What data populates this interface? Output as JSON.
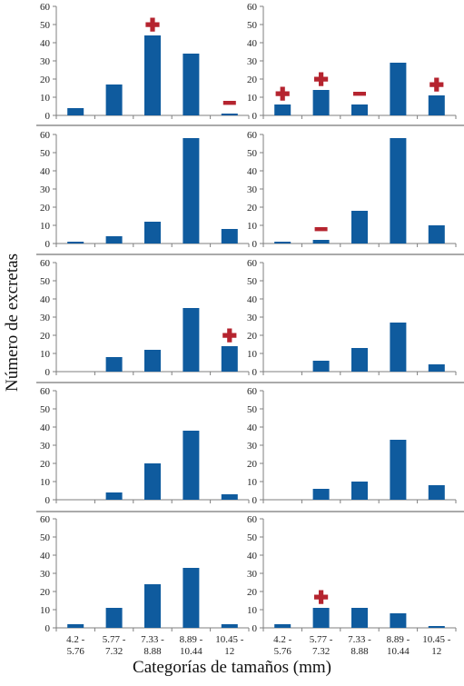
{
  "ylabel": "Número de excretas",
  "xlabel": "Categorías de tamaños (mm)",
  "colors": {
    "bar": "#0f5b9e",
    "marker": "#b5242f",
    "axis": "#7f7f7f",
    "divider": "#555555"
  },
  "chart_data": [
    {
      "type": "bar",
      "panel": "row1-left",
      "categories": [
        "4.2 - 5.76",
        "5.77 - 7.32",
        "7.33 - 8.88",
        "8.89 - 10.44",
        "10.45 - 12"
      ],
      "values": [
        4,
        17,
        44,
        34,
        1
      ],
      "ylim": [
        0,
        60
      ],
      "yticks": [
        0,
        10,
        20,
        30,
        40,
        50,
        60
      ],
      "markers": [
        {
          "category": "7.33 - 8.88",
          "symbol": "plus"
        },
        {
          "category": "10.45 - 12",
          "symbol": "minus"
        }
      ]
    },
    {
      "type": "bar",
      "panel": "row1-right",
      "categories": [
        "4.2 - 5.76",
        "5.77 - 7.32",
        "7.33 - 8.88",
        "8.89 - 10.44",
        "10.45 - 12"
      ],
      "values": [
        6,
        14,
        6,
        29,
        11
      ],
      "ylim": [
        0,
        60
      ],
      "yticks": [
        0,
        10,
        20,
        30,
        40,
        50,
        60
      ],
      "markers": [
        {
          "category": "4.2 - 5.76",
          "symbol": "plus"
        },
        {
          "category": "5.77 - 7.32",
          "symbol": "plus"
        },
        {
          "category": "7.33 - 8.88",
          "symbol": "minus"
        },
        {
          "category": "10.45 - 12",
          "symbol": "plus"
        }
      ]
    },
    {
      "type": "bar",
      "panel": "row2-left",
      "categories": [
        "4.2 - 5.76",
        "5.77 - 7.32",
        "7.33 - 8.88",
        "8.89 - 10.44",
        "10.45 - 12"
      ],
      "values": [
        1,
        4,
        12,
        58,
        8
      ],
      "ylim": [
        0,
        60
      ],
      "yticks": [
        0,
        10,
        20,
        30,
        40,
        50,
        60
      ],
      "markers": []
    },
    {
      "type": "bar",
      "panel": "row2-right",
      "categories": [
        "4.2 - 5.76",
        "5.77 - 7.32",
        "7.33 - 8.88",
        "8.89 - 10.44",
        "10.45 - 12"
      ],
      "values": [
        1,
        2,
        18,
        58,
        10
      ],
      "ylim": [
        0,
        60
      ],
      "yticks": [
        0,
        10,
        20,
        30,
        40,
        50,
        60
      ],
      "markers": [
        {
          "category": "5.77 - 7.32",
          "symbol": "minus"
        }
      ]
    },
    {
      "type": "bar",
      "panel": "row3-left",
      "categories": [
        "4.2 - 5.76",
        "5.77 - 7.32",
        "7.33 - 8.88",
        "8.89 - 10.44",
        "10.45 - 12"
      ],
      "values": [
        0,
        8,
        12,
        35,
        14
      ],
      "ylim": [
        0,
        60
      ],
      "yticks": [
        0,
        10,
        20,
        30,
        40,
        50,
        60
      ],
      "markers": [
        {
          "category": "10.45 - 12",
          "symbol": "plus"
        }
      ]
    },
    {
      "type": "bar",
      "panel": "row3-right",
      "categories": [
        "4.2 - 5.76",
        "5.77 - 7.32",
        "7.33 - 8.88",
        "8.89 - 10.44",
        "10.45 - 12"
      ],
      "values": [
        0,
        6,
        13,
        27,
        4
      ],
      "ylim": [
        0,
        60
      ],
      "yticks": [
        0,
        10,
        20,
        30,
        40,
        50,
        60
      ],
      "markers": []
    },
    {
      "type": "bar",
      "panel": "row4-left",
      "categories": [
        "4.2 - 5.76",
        "5.77 - 7.32",
        "7.33 - 8.88",
        "8.89 - 10.44",
        "10.45 - 12"
      ],
      "values": [
        0,
        4,
        20,
        38,
        3
      ],
      "ylim": [
        0,
        60
      ],
      "yticks": [
        0,
        10,
        20,
        30,
        40,
        50,
        60
      ],
      "markers": []
    },
    {
      "type": "bar",
      "panel": "row4-right",
      "categories": [
        "4.2 - 5.76",
        "5.77 - 7.32",
        "7.33 - 8.88",
        "8.89 - 10.44",
        "10.45 - 12"
      ],
      "values": [
        0,
        6,
        10,
        33,
        8
      ],
      "ylim": [
        0,
        60
      ],
      "yticks": [
        0,
        10,
        20,
        30,
        40,
        50,
        60
      ],
      "markers": []
    },
    {
      "type": "bar",
      "panel": "row5-left",
      "categories": [
        "4.2 - 5.76",
        "5.77 - 7.32",
        "7.33 - 8.88",
        "8.89 - 10.44",
        "10.45 - 12"
      ],
      "values": [
        2,
        11,
        24,
        33,
        2
      ],
      "ylim": [
        0,
        60
      ],
      "yticks": [
        0,
        10,
        20,
        30,
        40,
        50,
        60
      ],
      "markers": []
    },
    {
      "type": "bar",
      "panel": "row5-right",
      "categories": [
        "4.2 - 5.76",
        "5.77 - 7.32",
        "7.33 - 8.88",
        "8.89 - 10.44",
        "10.45 - 12"
      ],
      "values": [
        2,
        11,
        11,
        8,
        1
      ],
      "ylim": [
        0,
        60
      ],
      "yticks": [
        0,
        10,
        20,
        30,
        40,
        50,
        60
      ],
      "markers": [
        {
          "category": "5.77 - 7.32",
          "symbol": "plus"
        }
      ]
    }
  ]
}
